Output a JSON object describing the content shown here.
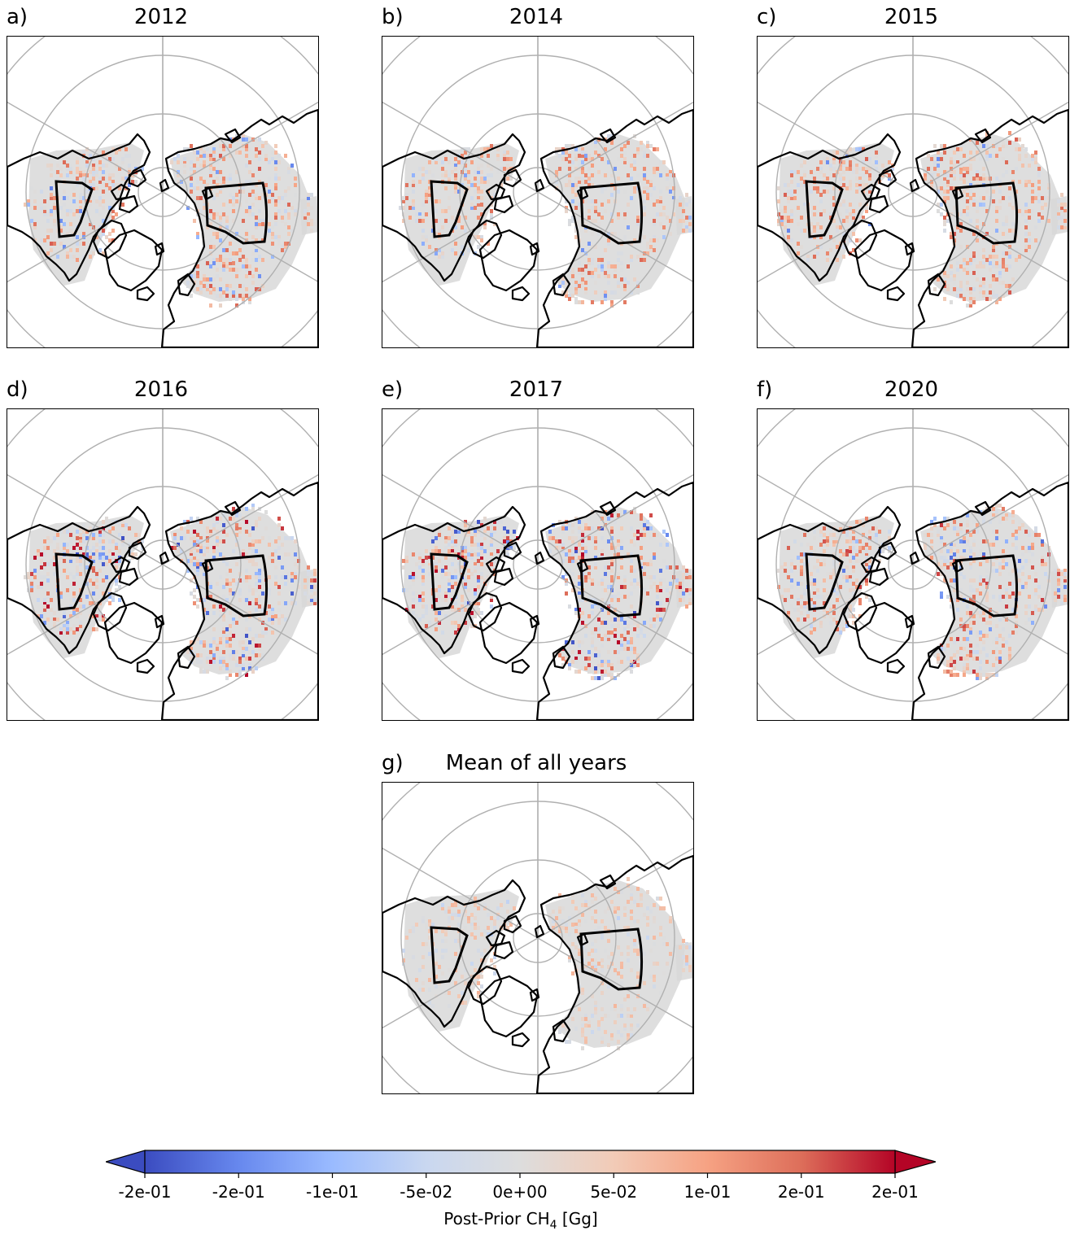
{
  "panels": [
    {
      "letter": "a)",
      "title": "2012",
      "seed": 11,
      "intensity": 0.75,
      "year_bias": 0.25
    },
    {
      "letter": "b)",
      "title": "2014",
      "seed": 23,
      "intensity": 0.7,
      "year_bias": 0.3
    },
    {
      "letter": "c)",
      "title": "2015",
      "seed": 37,
      "intensity": 0.75,
      "year_bias": 0.4
    },
    {
      "letter": "d)",
      "title": "2016",
      "seed": 41,
      "intensity": 1.0,
      "year_bias": 0.15
    },
    {
      "letter": "e)",
      "title": "2017",
      "seed": 53,
      "intensity": 1.0,
      "year_bias": 0.2
    },
    {
      "letter": "f)",
      "title": "2020",
      "seed": 67,
      "intensity": 0.85,
      "year_bias": 0.3
    },
    {
      "letter": "g)",
      "title": "Mean of all years",
      "seed": 79,
      "intensity": 0.25,
      "year_bias": 0.35
    }
  ],
  "colorbar": {
    "label_prefix": "Post-Prior CH",
    "label_sub": "4",
    "label_suffix": " [Gg]",
    "ticks": [
      "-2e-01",
      "-2e-01",
      "-1e-01",
      "-5e-02",
      "0e+00",
      "5e-02",
      "1e-01",
      "2e-01",
      "2e-01"
    ],
    "colors": [
      "#3b4cc0",
      "#6788ee",
      "#9abbff",
      "#c9d7f0",
      "#dddddd",
      "#f2cbb7",
      "#f6a283",
      "#dd6e5a",
      "#b40426"
    ],
    "extend": "both"
  },
  "map_colors": {
    "land_fill": "#ffffff",
    "coast": "#000000",
    "grid": "#b0b0b0",
    "neutral_cell": "#d8d8d8",
    "region_outline": "#000000"
  },
  "map_layer": {
    "projection": "north-polar-stereographic",
    "graticule": "latitude circles and meridians",
    "regions": [
      "Hudson Bay Lowlands box",
      "West Siberian Lowlands box"
    ]
  }
}
